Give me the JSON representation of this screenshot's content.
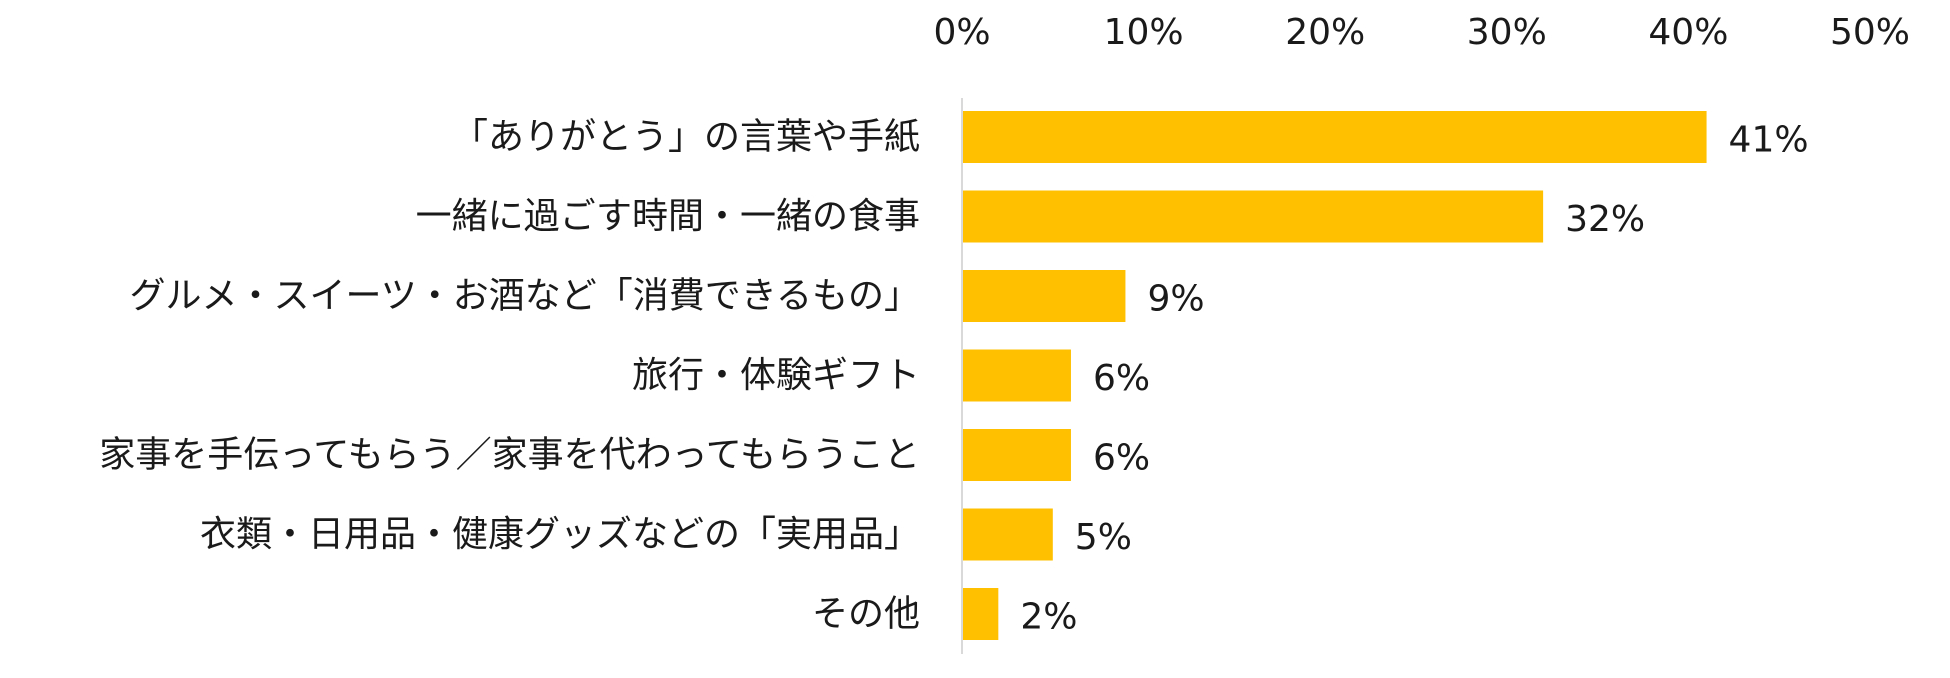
{
  "chart_data": {
    "type": "bar",
    "orientation": "horizontal",
    "categories": [
      "「ありがとう」の言葉や手紙",
      "一緒に過ごす時間・一緒の食事",
      "グルメ・スイーツ・お酒など「消費できるもの」",
      "旅行・体験ギフト",
      "家事を手伝ってもらう／家事を代わってもらうこと",
      "衣類・日用品・健康グッズなどの「実用品」",
      "その他"
    ],
    "values": [
      41,
      32,
      9,
      6,
      6,
      5,
      2
    ],
    "value_labels": [
      "41%",
      "32%",
      "9%",
      "6%",
      "6%",
      "5%",
      "2%"
    ],
    "xlim": [
      0,
      50
    ],
    "x_ticks": [
      0,
      10,
      20,
      30,
      40,
      50
    ],
    "x_tick_labels": [
      "0%",
      "10%",
      "20%",
      "30%",
      "40%",
      "50%"
    ],
    "x_axis_position": "top",
    "grid": false,
    "legend": "none",
    "bar_color": "#FFC000",
    "axis_line_color": "#D9D9D9",
    "title": "",
    "xlabel": "",
    "ylabel": ""
  }
}
